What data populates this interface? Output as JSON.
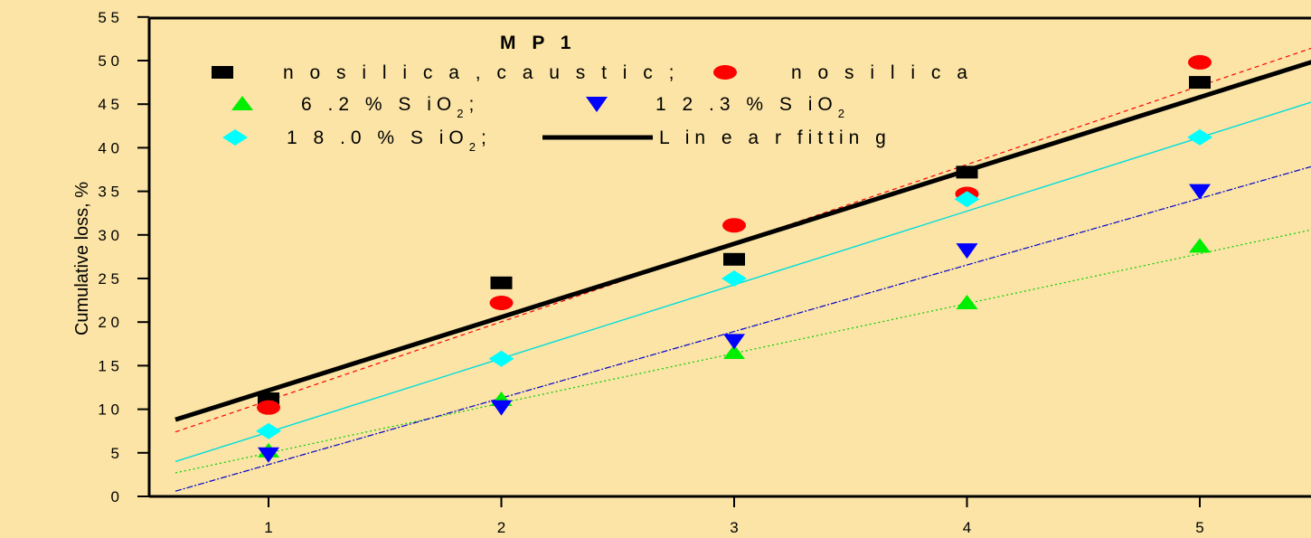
{
  "chart_data": {
    "type": "scatter",
    "title": "",
    "xlabel": "",
    "ylabel": "Cumulative loss, %",
    "xlim": [
      0.4,
      5.5
    ],
    "ylim": [
      0,
      55
    ],
    "x_ticks": [
      "1",
      "2",
      "3",
      "4",
      "5"
    ],
    "y_ticks": [
      "0",
      "5",
      "1 0",
      "1 5",
      "2 0",
      "2 5",
      "3 0",
      "3 5",
      "4 0",
      "4 5",
      "5 0",
      "5 5"
    ],
    "grid": false,
    "legend": {
      "title": "M P 1",
      "placement": "top-left",
      "entries": [
        {
          "series": 0,
          "label": "n o  s i l i c a ,  c a u s t i c ;"
        },
        {
          "series": 1,
          "label": "n o  s i l i c a"
        },
        {
          "series": 2,
          "label": "6 .2  %  S iO",
          "sub": "2",
          "suffix": ";"
        },
        {
          "series": 3,
          "label": "1 2 .3  %  S iO",
          "sub": "2",
          "suffix": ""
        },
        {
          "series": 4,
          "label": "1 8 .0  %  S iO",
          "sub": "2",
          "suffix": ";"
        },
        {
          "series": "fit",
          "label": "L in e a r  fittin g"
        }
      ]
    },
    "series": [
      {
        "marker": "square",
        "color": "#000000",
        "points": [
          [
            1,
            11.2
          ],
          [
            2,
            24.5
          ],
          [
            3,
            27.2
          ],
          [
            4,
            37.2
          ],
          [
            5,
            47.5
          ]
        ],
        "fit": {
          "x": [
            0.6,
            5.5
          ],
          "y": [
            7.4,
            51.6
          ],
          "dash": "5,4",
          "color": "#ff0000",
          "width": 1.2
        }
      },
      {
        "marker": "ellipse",
        "color": "#ff0000",
        "points": [
          [
            1,
            10.2
          ],
          [
            2,
            22.2
          ],
          [
            3,
            31.1
          ],
          [
            4,
            34.7
          ],
          [
            5,
            49.8
          ]
        ]
      },
      {
        "marker": "triangle-up",
        "color": "#00ee00",
        "points": [
          [
            1,
            5.2
          ],
          [
            2,
            11.1
          ],
          [
            3,
            16.5
          ],
          [
            4,
            22.2
          ],
          [
            5,
            28.7
          ]
        ],
        "fit": {
          "x": [
            0.6,
            5.5
          ],
          "y": [
            2.7,
            30.7
          ],
          "dash": "2,3",
          "color": "#00cc00",
          "width": 1.2
        }
      },
      {
        "marker": "triangle-down",
        "color": "#0000ff",
        "points": [
          [
            1,
            4.8
          ],
          [
            2,
            10.2
          ],
          [
            3,
            17.8
          ],
          [
            4,
            28.2
          ],
          [
            5,
            35.0
          ]
        ],
        "fit": {
          "x": [
            0.6,
            5.5
          ],
          "y": [
            0.6,
            38.0
          ],
          "dash": "7,2,2,2",
          "color": "#0000cc",
          "width": 1.2
        }
      },
      {
        "marker": "diamond",
        "color": "#00ffff",
        "points": [
          [
            1,
            7.5
          ],
          [
            2,
            15.8
          ],
          [
            3,
            25.0
          ],
          [
            4,
            34.1
          ],
          [
            5,
            41.2
          ]
        ],
        "fit": {
          "x": [
            0.6,
            5.5
          ],
          "y": [
            4.0,
            45.4
          ],
          "dash": "",
          "color": "#00dddd",
          "width": 1.4
        }
      }
    ],
    "main_fit": {
      "x": [
        0.6,
        5.5
      ],
      "y": [
        8.8,
        50.0
      ],
      "color": "#000000",
      "width": 5
    }
  }
}
